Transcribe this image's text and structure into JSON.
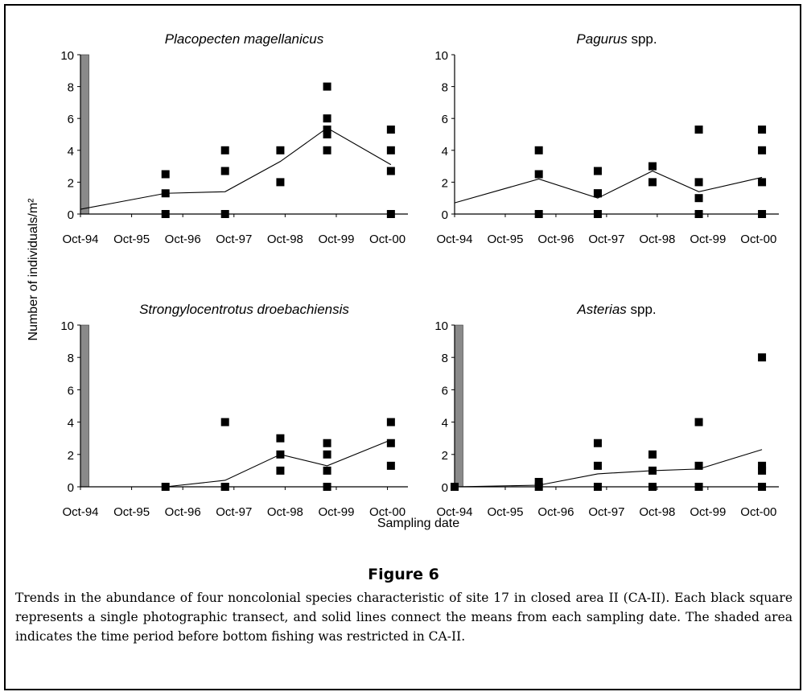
{
  "figure": {
    "label": "Figure 6",
    "caption": "Trends in the abundance of four noncolonial species characteristic of site 17 in closed area II (CA-II). Each black square represents a single photographic transect, and solid lines connect the means from each sampling date. The shaded area indicates the time period before bottom fishing was restricted in CA-II.",
    "ylabel": "Number of individuals/m²",
    "xlabel": "Sampling date"
  },
  "chart_data": [
    {
      "type": "scatter",
      "title_italic": "Placopecten magellanicus",
      "title_suffix": "",
      "x_ticks": [
        "Oct-94",
        "Oct-95",
        "Oct-96",
        "Oct-97",
        "Oct-98",
        "Oct-99",
        "Oct-00"
      ],
      "y_ticks": [
        "0",
        "2",
        "4",
        "6",
        "8",
        "10"
      ],
      "ylim": [
        0,
        10
      ],
      "xlim": [
        "1994-10",
        "2001-03"
      ],
      "shaded_period": [
        "1994-10",
        "1994-12"
      ],
      "points": [
        {
          "x": "1996-06",
          "y": [
            2.5,
            1.3,
            0
          ]
        },
        {
          "x": "1997-08",
          "y": [
            4,
            2.7,
            0
          ]
        },
        {
          "x": "1998-09",
          "y": [
            4,
            2
          ]
        },
        {
          "x": "1999-08",
          "y": [
            8,
            6,
            5.3,
            5,
            4
          ]
        },
        {
          "x": "2000-11",
          "y": [
            5.3,
            4,
            2.7,
            0
          ]
        }
      ],
      "mean_line": [
        {
          "x": "1994-10",
          "y": 0.3
        },
        {
          "x": "1996-06",
          "y": 1.3
        },
        {
          "x": "1997-08",
          "y": 1.4
        },
        {
          "x": "1998-09",
          "y": 3.3
        },
        {
          "x": "1999-08",
          "y": 5.4
        },
        {
          "x": "2000-11",
          "y": 3.1
        }
      ]
    },
    {
      "type": "scatter",
      "title_italic": "Pagurus",
      "title_suffix": " spp.",
      "x_ticks": [
        "Oct-94",
        "Oct-95",
        "Oct-96",
        "Oct-97",
        "Oct-98",
        "Oct-99",
        "Oct-00"
      ],
      "y_ticks": [
        "0",
        "2",
        "4",
        "6",
        "8",
        "10"
      ],
      "ylim": [
        0,
        10
      ],
      "xlim": [
        "1994-10",
        "2001-03"
      ],
      "shaded_period": null,
      "points": [
        {
          "x": "1996-06",
          "y": [
            4,
            2.5,
            0
          ]
        },
        {
          "x": "1997-08",
          "y": [
            2.7,
            1.3,
            1.3,
            0
          ]
        },
        {
          "x": "1998-09",
          "y": [
            3,
            2
          ]
        },
        {
          "x": "1999-08",
          "y": [
            5.3,
            2,
            1,
            0
          ]
        },
        {
          "x": "2000-11",
          "y": [
            5.3,
            4,
            2,
            0
          ]
        }
      ],
      "mean_line": [
        {
          "x": "1994-10",
          "y": 0.7
        },
        {
          "x": "1996-06",
          "y": 2.2
        },
        {
          "x": "1997-08",
          "y": 1.0
        },
        {
          "x": "1998-09",
          "y": 2.7
        },
        {
          "x": "1999-08",
          "y": 1.4
        },
        {
          "x": "2000-11",
          "y": 2.3
        }
      ]
    },
    {
      "type": "scatter",
      "title_italic": "Strongylocentrotus droebachiensis",
      "title_suffix": "",
      "x_ticks": [
        "Oct-94",
        "Oct-95",
        "Oct-96",
        "Oct-97",
        "Oct-98",
        "Oct-99",
        "Oct-00"
      ],
      "y_ticks": [
        "0",
        "2",
        "4",
        "6",
        "8",
        "10"
      ],
      "ylim": [
        0,
        10
      ],
      "xlim": [
        "1994-10",
        "2001-03"
      ],
      "shaded_period": [
        "1994-10",
        "1994-12"
      ],
      "points": [
        {
          "x": "1996-06",
          "y": [
            0
          ]
        },
        {
          "x": "1997-08",
          "y": [
            4,
            0,
            0
          ]
        },
        {
          "x": "1998-09",
          "y": [
            3,
            2,
            1
          ]
        },
        {
          "x": "1999-08",
          "y": [
            2.7,
            2,
            1,
            0
          ]
        },
        {
          "x": "2000-11",
          "y": [
            4,
            2.7,
            1.3
          ]
        }
      ],
      "mean_line": [
        {
          "x": "1994-10",
          "y": 0
        },
        {
          "x": "1996-06",
          "y": 0
        },
        {
          "x": "1997-08",
          "y": 0.4
        },
        {
          "x": "1998-09",
          "y": 2.0
        },
        {
          "x": "1999-08",
          "y": 1.3
        },
        {
          "x": "2000-11",
          "y": 2.9
        }
      ]
    },
    {
      "type": "scatter",
      "title_italic": "Asterias",
      "title_suffix": " spp.",
      "x_ticks": [
        "Oct-94",
        "Oct-95",
        "Oct-96",
        "Oct-97",
        "Oct-98",
        "Oct-99",
        "Oct-00"
      ],
      "y_ticks": [
        "0",
        "2",
        "4",
        "6",
        "8",
        "10"
      ],
      "ylim": [
        0,
        10
      ],
      "xlim": [
        "1994-10",
        "2001-03"
      ],
      "shaded_period": [
        "1994-10",
        "1994-12"
      ],
      "points": [
        {
          "x": "1994-10",
          "y": [
            0
          ]
        },
        {
          "x": "1996-06",
          "y": [
            0.3,
            0
          ]
        },
        {
          "x": "1997-08",
          "y": [
            2.7,
            1.3,
            0
          ]
        },
        {
          "x": "1998-09",
          "y": [
            2,
            1,
            0
          ]
        },
        {
          "x": "1999-08",
          "y": [
            4,
            1.3,
            0
          ]
        },
        {
          "x": "2000-11",
          "y": [
            8,
            1.3,
            1,
            0
          ]
        }
      ],
      "mean_line": [
        {
          "x": "1994-10",
          "y": 0
        },
        {
          "x": "1996-06",
          "y": 0.1
        },
        {
          "x": "1997-08",
          "y": 0.8
        },
        {
          "x": "1998-09",
          "y": 1.0
        },
        {
          "x": "1999-08",
          "y": 1.1
        },
        {
          "x": "2000-11",
          "y": 2.3
        }
      ]
    }
  ]
}
